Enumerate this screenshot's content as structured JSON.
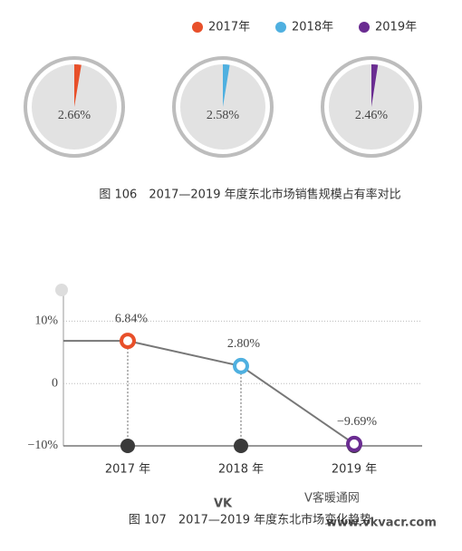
{
  "chart_data": [
    {
      "type": "pie",
      "caption": "图 106　2017—2019 年度东北市场销售规模占有率对比",
      "series": [
        {
          "name": "2017年",
          "color": "#e8502a",
          "values": [
            2.66
          ],
          "value_labels": [
            "2.66%"
          ]
        },
        {
          "name": "2018年",
          "color": "#4fb0e0",
          "values": [
            2.58
          ],
          "value_labels": [
            "2.58%"
          ]
        },
        {
          "name": "2019年",
          "color": "#6a2c91",
          "values": [
            2.46
          ],
          "value_labels": [
            "2.46%"
          ]
        }
      ]
    },
    {
      "type": "line",
      "caption": "图 107　2017—2019 年度东北市场变化趋势",
      "categories": [
        "2017 年",
        "2018 年",
        "2019 年"
      ],
      "values": [
        6.84,
        2.8,
        -9.69
      ],
      "value_labels": [
        "6.84%",
        "2.80%",
        "−9.69%"
      ],
      "colors": [
        "#e8502a",
        "#4fb0e0",
        "#6a2c91"
      ],
      "color": "#777777",
      "ylim": [
        -10,
        15
      ],
      "yticks": [
        {
          "value": 10,
          "label": "10%"
        },
        0,
        {
          "value": -10,
          "label": "−10%"
        }
      ],
      "grid": true
    }
  ],
  "watermark": {
    "logo": "VK",
    "name": "V客暖通网",
    "url": "www.vkvacr.com"
  }
}
